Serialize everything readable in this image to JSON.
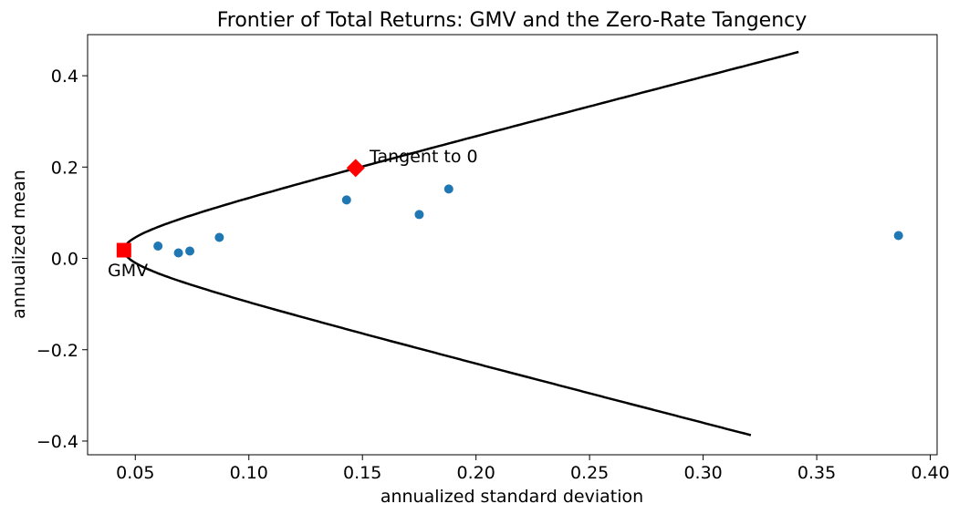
{
  "chart_data": {
    "type": "scatter",
    "title": "Frontier of Total Returns: GMV and the Zero-Rate Tangency",
    "xlabel": "annualized standard deviation",
    "ylabel": "annualized mean",
    "xlim": [
      0.029,
      0.403
    ],
    "ylim": [
      -0.43,
      0.49
    ],
    "x_ticks": [
      0.05,
      0.1,
      0.15,
      0.2,
      0.25,
      0.3,
      0.35,
      0.4
    ],
    "x_tick_labels": [
      "0.05",
      "0.10",
      "0.15",
      "0.20",
      "0.25",
      "0.30",
      "0.35",
      "0.40"
    ],
    "y_ticks": [
      -0.4,
      -0.2,
      0.0,
      0.2,
      0.4
    ],
    "y_tick_labels": [
      "−0.4",
      "−0.2",
      "0.0",
      "0.2",
      "0.4"
    ],
    "grid": false,
    "frontier": {
      "color": "#000000",
      "gmv_point": {
        "x": 0.045,
        "y": 0.018
      },
      "upper_end": {
        "x": 0.342,
        "y": 0.452
      },
      "lower_end": {
        "x": 0.321,
        "y": -0.387
      }
    },
    "assets": {
      "color": "#1f77b4",
      "points": [
        {
          "x": 0.06,
          "y": 0.027
        },
        {
          "x": 0.069,
          "y": 0.012
        },
        {
          "x": 0.074,
          "y": 0.016
        },
        {
          "x": 0.087,
          "y": 0.046
        },
        {
          "x": 0.143,
          "y": 0.128
        },
        {
          "x": 0.175,
          "y": 0.096
        },
        {
          "x": 0.188,
          "y": 0.152
        },
        {
          "x": 0.386,
          "y": 0.05
        }
      ]
    },
    "gmv": {
      "x": 0.045,
      "y": 0.018,
      "label": "GMV",
      "marker": "square",
      "color": "#ff0000"
    },
    "tangency": {
      "x": 0.147,
      "y": 0.198,
      "label": "Tangent to 0",
      "marker": "diamond",
      "color": "#ff0000"
    }
  }
}
